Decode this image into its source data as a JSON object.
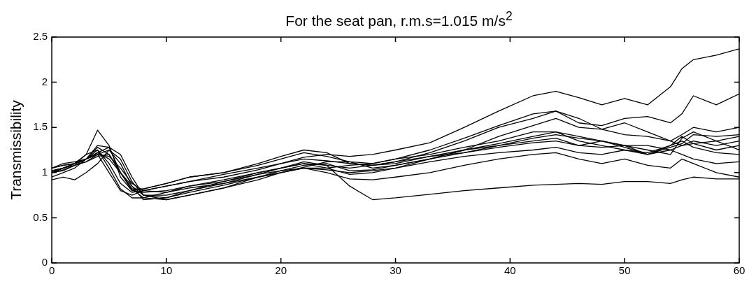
{
  "chart_data": {
    "type": "line",
    "title": "For the seat pan, r.m.s=1.015 m/s$^{2}$",
    "ylabel": "Transmissibility",
    "x": [
      0,
      1,
      2,
      3,
      4,
      5,
      6,
      7,
      8,
      10,
      12,
      15,
      18,
      20,
      22,
      24,
      26,
      28,
      30,
      33,
      36,
      39,
      42,
      44,
      46,
      48,
      50,
      52,
      54,
      55,
      56,
      58,
      60
    ],
    "xlim": [
      0,
      60
    ],
    "xticks": [
      0,
      10,
      20,
      30,
      40,
      50,
      60
    ],
    "ylim": [
      0,
      2.5
    ],
    "yticks": [
      0,
      0.5,
      1,
      1.5,
      2,
      2.5
    ],
    "grid": false,
    "legend": false,
    "marker": "none",
    "line_style": "solid",
    "series": [
      {
        "color": "#000000",
        "values": [
          1.0,
          1.05,
          1.1,
          1.15,
          1.25,
          1.1,
          0.88,
          0.78,
          0.8,
          0.85,
          0.9,
          0.95,
          1.03,
          1.1,
          1.17,
          1.2,
          1.18,
          1.2,
          1.25,
          1.33,
          1.5,
          1.68,
          1.85,
          1.9,
          1.83,
          1.75,
          1.82,
          1.75,
          1.95,
          2.15,
          2.25,
          2.3,
          2.37
        ]
      },
      {
        "color": "#000000",
        "values": [
          1.02,
          1.05,
          1.1,
          1.2,
          1.47,
          1.3,
          0.95,
          0.8,
          0.82,
          0.88,
          0.95,
          1.0,
          1.08,
          1.15,
          1.22,
          1.18,
          1.12,
          1.1,
          1.15,
          1.25,
          1.38,
          1.52,
          1.65,
          1.68,
          1.55,
          1.52,
          1.6,
          1.62,
          1.55,
          1.65,
          1.85,
          1.75,
          1.87
        ]
      },
      {
        "color": "#000000",
        "values": [
          0.95,
          1.0,
          1.05,
          1.15,
          1.28,
          1.2,
          1.0,
          0.85,
          0.75,
          0.75,
          0.8,
          0.88,
          0.98,
          1.05,
          1.12,
          1.08,
          0.85,
          0.7,
          0.72,
          0.76,
          0.8,
          0.83,
          0.86,
          0.87,
          0.88,
          0.87,
          0.9,
          0.9,
          0.88,
          0.92,
          0.95,
          0.93,
          0.93
        ]
      },
      {
        "color": "#000000",
        "values": [
          1.05,
          1.08,
          1.1,
          1.2,
          1.25,
          1.05,
          0.82,
          0.72,
          0.72,
          0.78,
          0.85,
          0.92,
          1.0,
          1.05,
          1.1,
          1.08,
          1.05,
          1.08,
          1.12,
          1.22,
          1.35,
          1.5,
          1.6,
          1.68,
          1.6,
          1.48,
          1.55,
          1.45,
          1.35,
          1.42,
          1.5,
          1.45,
          1.5
        ]
      },
      {
        "color": "#000000",
        "values": [
          1.0,
          1.05,
          1.1,
          1.15,
          1.22,
          1.15,
          1.0,
          0.82,
          0.72,
          0.7,
          0.75,
          0.83,
          0.92,
          1.0,
          1.05,
          1.0,
          0.93,
          0.92,
          0.95,
          1.0,
          1.08,
          1.15,
          1.2,
          1.22,
          1.15,
          1.1,
          1.15,
          1.08,
          1.05,
          1.15,
          1.1,
          1.0,
          0.95
        ]
      },
      {
        "color": "#000000",
        "values": [
          1.0,
          1.02,
          1.08,
          1.15,
          1.2,
          1.25,
          1.1,
          0.85,
          0.7,
          0.72,
          0.8,
          0.9,
          1.0,
          1.05,
          1.1,
          1.05,
          0.98,
          1.0,
          1.05,
          1.15,
          1.25,
          1.32,
          1.4,
          1.45,
          1.35,
          1.3,
          1.25,
          1.22,
          1.3,
          1.4,
          1.32,
          1.25,
          1.3
        ]
      },
      {
        "color": "#000000",
        "values": [
          0.92,
          0.95,
          0.92,
          1.0,
          1.1,
          1.25,
          1.15,
          0.9,
          0.75,
          0.7,
          0.75,
          0.83,
          0.95,
          1.02,
          1.08,
          1.1,
          1.02,
          1.03,
          1.08,
          1.15,
          1.22,
          1.28,
          1.33,
          1.35,
          1.3,
          1.28,
          1.3,
          1.2,
          1.3,
          1.35,
          1.28,
          1.22,
          1.2
        ]
      },
      {
        "color": "#000000",
        "values": [
          1.05,
          1.08,
          1.1,
          1.15,
          1.2,
          1.0,
          0.8,
          0.75,
          0.8,
          0.85,
          0.9,
          0.98,
          1.05,
          1.1,
          1.15,
          1.13,
          1.1,
          1.08,
          1.1,
          1.18,
          1.25,
          1.3,
          1.38,
          1.42,
          1.38,
          1.35,
          1.3,
          1.25,
          1.2,
          1.38,
          1.45,
          1.35,
          1.4
        ]
      },
      {
        "color": "#000000",
        "values": [
          1.02,
          1.05,
          1.08,
          1.12,
          1.18,
          1.2,
          1.0,
          0.8,
          0.78,
          0.8,
          0.85,
          0.9,
          0.98,
          1.02,
          1.05,
          1.05,
          1.08,
          1.1,
          1.15,
          1.2,
          1.28,
          1.35,
          1.45,
          1.45,
          1.4,
          1.35,
          1.3,
          1.3,
          1.25,
          1.3,
          1.35,
          1.3,
          1.35
        ]
      },
      {
        "color": "#000000",
        "values": [
          1.0,
          1.03,
          1.08,
          1.12,
          1.2,
          1.18,
          1.05,
          0.88,
          0.8,
          0.78,
          0.83,
          0.88,
          0.95,
          1.0,
          1.05,
          1.03,
          1.0,
          1.02,
          1.05,
          1.12,
          1.18,
          1.22,
          1.25,
          1.28,
          1.22,
          1.2,
          1.25,
          1.2,
          1.25,
          1.2,
          1.15,
          1.1,
          1.12
        ]
      },
      {
        "color": "#000000",
        "values": [
          1.05,
          1.1,
          1.12,
          1.15,
          1.22,
          1.28,
          1.2,
          0.95,
          0.75,
          0.72,
          0.78,
          0.86,
          0.95,
          1.0,
          1.06,
          1.12,
          1.12,
          1.05,
          1.08,
          1.15,
          1.25,
          1.4,
          1.52,
          1.6,
          1.5,
          1.48,
          1.42,
          1.4,
          1.35,
          1.3,
          1.32,
          1.35,
          1.25
        ]
      },
      {
        "color": "#000000",
        "values": [
          1.0,
          1.05,
          1.1,
          1.15,
          1.3,
          1.28,
          1.0,
          0.82,
          0.82,
          0.88,
          0.95,
          1.0,
          1.1,
          1.18,
          1.25,
          1.22,
          1.1,
          1.08,
          1.12,
          1.18,
          1.22,
          1.3,
          1.35,
          1.38,
          1.3,
          1.35,
          1.28,
          1.2,
          1.28,
          1.32,
          1.42,
          1.4,
          1.42
        ]
      }
    ]
  }
}
